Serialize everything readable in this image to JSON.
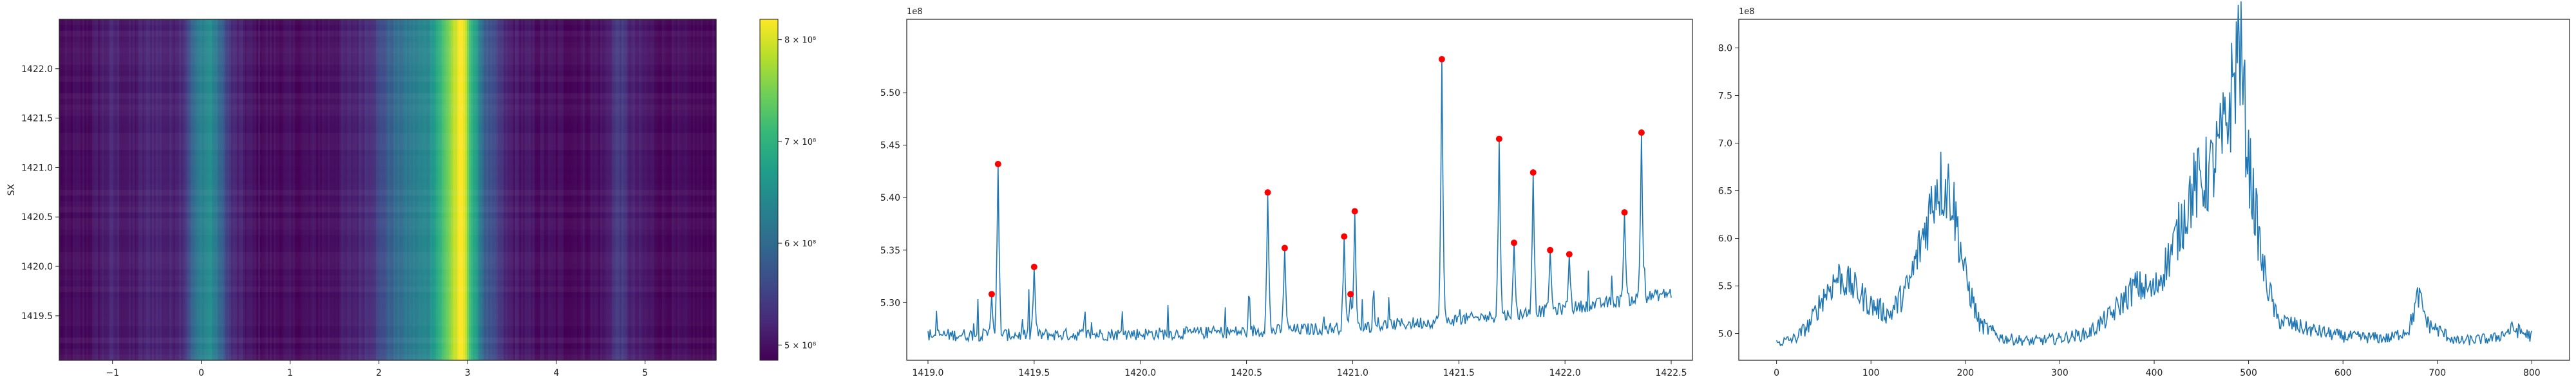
{
  "figure": {
    "background": "#ffffff",
    "axis_color": "#222222",
    "line_color": "#1f77b4",
    "peak_color": "#ff0000"
  },
  "chart_data": [
    {
      "type": "heatmap",
      "colormap": "viridis",
      "xlim": [
        -1.6,
        5.8
      ],
      "ylim": [
        1419.05,
        1422.5
      ],
      "ylabel": "SX",
      "x_ticks": [
        -1,
        0,
        1,
        2,
        3,
        4,
        5
      ],
      "x_tick_labels": [
        "−1",
        "0",
        "1",
        "2",
        "3",
        "4",
        "5"
      ],
      "y_ticks": [
        1419.5,
        1420.0,
        1420.5,
        1421.0,
        1421.5,
        1422.0
      ],
      "y_tick_labels": [
        "1419.5",
        "1420.0",
        "1420.5",
        "1421.0",
        "1421.5",
        "1422.0"
      ],
      "color_range": [
        485000000.0,
        820000000.0
      ],
      "column_profile": [
        [
          -1.6,
          485000000.0
        ],
        [
          -1.25,
          495000000.0
        ],
        [
          -1.0,
          515000000.0
        ],
        [
          -0.8,
          500000000.0
        ],
        [
          -0.55,
          520000000.0
        ],
        [
          -0.35,
          510000000.0
        ],
        [
          -0.2,
          530000000.0
        ],
        [
          -0.1,
          590000000.0
        ],
        [
          0.0,
          630000000.0
        ],
        [
          0.1,
          650000000.0
        ],
        [
          0.2,
          600000000.0
        ],
        [
          0.35,
          520000000.0
        ],
        [
          0.6,
          495000000.0
        ],
        [
          1.1,
          490000000.0
        ],
        [
          1.5,
          500000000.0
        ],
        [
          1.75,
          515000000.0
        ],
        [
          1.95,
          540000000.0
        ],
        [
          2.15,
          590000000.0
        ],
        [
          2.35,
          620000000.0
        ],
        [
          2.55,
          640000000.0
        ],
        [
          2.75,
          730000000.0
        ],
        [
          2.85,
          790000000.0
        ],
        [
          2.95,
          820000000.0
        ],
        [
          3.05,
          700000000.0
        ],
        [
          3.2,
          580000000.0
        ],
        [
          3.45,
          510000000.0
        ],
        [
          3.8,
          495000000.0
        ],
        [
          4.2,
          490000000.0
        ],
        [
          4.55,
          500000000.0
        ],
        [
          4.7,
          545000000.0
        ],
        [
          4.85,
          510000000.0
        ],
        [
          5.2,
          490000000.0
        ],
        [
          5.8,
          485000000.0
        ]
      ],
      "colorbar": {
        "ticks": [
          500000000.0,
          600000000.0,
          700000000.0,
          800000000.0
        ],
        "tick_labels": [
          "5 × 10⁸",
          "6 × 10⁸",
          "7 × 10⁸",
          "8 × 10⁸"
        ]
      }
    },
    {
      "type": "line",
      "xlim": [
        1418.9,
        1422.6
      ],
      "ylim": [
        524500000.0,
        557000000.0
      ],
      "offset_label": "1e8",
      "x_ticks": [
        1419.0,
        1419.5,
        1420.0,
        1420.5,
        1421.0,
        1421.5,
        1422.0,
        1422.5
      ],
      "x_tick_labels": [
        "1419.0",
        "1419.5",
        "1420.0",
        "1420.5",
        "1421.0",
        "1421.5",
        "1422.0",
        "1422.5"
      ],
      "y_ticks": [
        530000000.0,
        535000000.0,
        540000000.0,
        545000000.0,
        550000000.0
      ],
      "y_tick_labels": [
        "5.30",
        "5.35",
        "5.40",
        "5.45",
        "5.50"
      ],
      "peaks": [
        [
          1419.3,
          530800000.0
        ],
        [
          1419.33,
          543200000.0
        ],
        [
          1419.5,
          533400000.0
        ],
        [
          1420.6,
          540500000.0
        ],
        [
          1420.68,
          535200000.0
        ],
        [
          1420.96,
          536300000.0
        ],
        [
          1420.99,
          530800000.0
        ],
        [
          1421.01,
          538700000.0
        ],
        [
          1421.42,
          553200000.0
        ],
        [
          1421.69,
          545600000.0
        ],
        [
          1421.76,
          535700000.0
        ],
        [
          1421.85,
          542400000.0
        ],
        [
          1421.93,
          535000000.0
        ],
        [
          1422.02,
          534600000.0
        ],
        [
          1422.28,
          538600000.0
        ],
        [
          1422.36,
          546200000.0
        ]
      ]
    },
    {
      "type": "line",
      "xlim": [
        -40,
        840
      ],
      "ylim": [
        472000000.0,
        830000000.0
      ],
      "offset_label": "1e8",
      "x_ticks": [
        0,
        100,
        200,
        300,
        400,
        500,
        600,
        700,
        800
      ],
      "x_tick_labels": [
        "0",
        "100",
        "200",
        "300",
        "400",
        "500",
        "600",
        "700",
        "800"
      ],
      "y_ticks": [
        500000000.0,
        550000000.0,
        600000000.0,
        650000000.0,
        700000000.0,
        750000000.0,
        800000000.0
      ],
      "y_tick_labels": [
        "5.0",
        "5.5",
        "6.0",
        "6.5",
        "7.0",
        "7.5",
        "8.0"
      ],
      "profile": [
        [
          0,
          490000000.0
        ],
        [
          20,
          495000000.0
        ],
        [
          35,
          510000000.0
        ],
        [
          50,
          540000000.0
        ],
        [
          65,
          560000000.0
        ],
        [
          80,
          550000000.0
        ],
        [
          100,
          530000000.0
        ],
        [
          120,
          520000000.0
        ],
        [
          140,
          550000000.0
        ],
        [
          160,
          620000000.0
        ],
        [
          170,
          660000000.0
        ],
        [
          185,
          650000000.0
        ],
        [
          200,
          560000000.0
        ],
        [
          215,
          510000000.0
        ],
        [
          240,
          495000000.0
        ],
        [
          270,
          492000000.0
        ],
        [
          300,
          495000000.0
        ],
        [
          330,
          500000000.0
        ],
        [
          355,
          520000000.0
        ],
        [
          380,
          550000000.0
        ],
        [
          400,
          545000000.0
        ],
        [
          420,
          590000000.0
        ],
        [
          440,
          650000000.0
        ],
        [
          460,
          670000000.0
        ],
        [
          475,
          710000000.0
        ],
        [
          485,
          770000000.0
        ],
        [
          490,
          810000000.0
        ],
        [
          500,
          680000000.0
        ],
        [
          515,
          570000000.0
        ],
        [
          530,
          515000000.0
        ],
        [
          560,
          505000000.0
        ],
        [
          600,
          497000000.0
        ],
        [
          650,
          495000000.0
        ],
        [
          670,
          505000000.0
        ],
        [
          680,
          540000000.0
        ],
        [
          690,
          510000000.0
        ],
        [
          720,
          492000000.0
        ],
        [
          760,
          495000000.0
        ],
        [
          780,
          505000000.0
        ],
        [
          800,
          497000000.0
        ]
      ]
    }
  ]
}
